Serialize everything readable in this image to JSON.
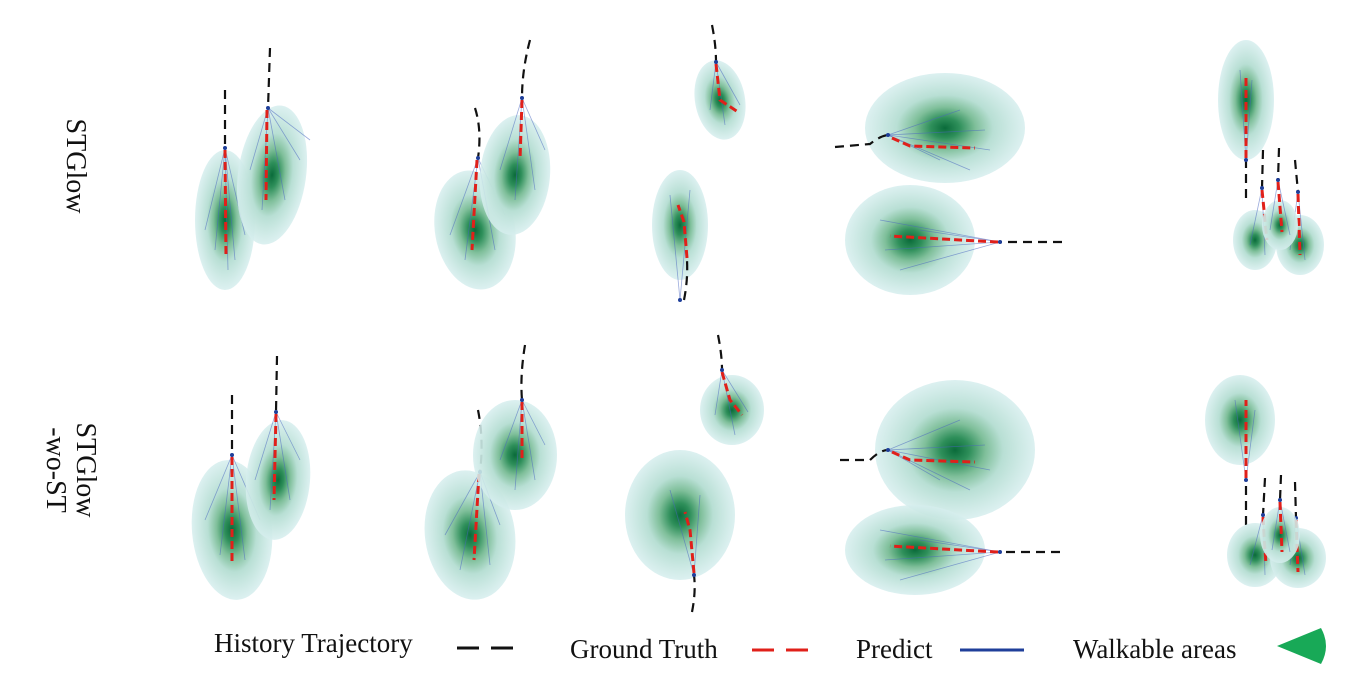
{
  "row_labels": {
    "row1": "STGlow",
    "row2_line1": "STGlow",
    "row2_line2": "-wo-ST"
  },
  "legend": {
    "history": "History Trajectory",
    "ground_truth": "Ground Truth",
    "predict": "Predict",
    "walkable": "Walkable areas"
  },
  "colors": {
    "history": "#111111",
    "ground_truth": "#e0201a",
    "predict": "#1f3f9a",
    "walkable": "#18a957",
    "density_light": "#d3ecec",
    "density_dark": "#0c6e3c"
  }
}
